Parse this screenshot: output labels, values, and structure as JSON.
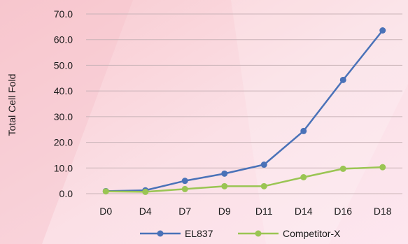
{
  "chart_data": {
    "type": "line",
    "categories": [
      "D0",
      "D4",
      "D7",
      "D9",
      "D11",
      "D14",
      "D16",
      "D18"
    ],
    "ylabel": "Total Cell Fold",
    "xlabel": "",
    "ylim": [
      0,
      70
    ],
    "yticks": [
      "0.0",
      "10.0",
      "20.0",
      "30.0",
      "40.0",
      "50.0",
      "60.0",
      "70.0"
    ],
    "grid": true,
    "legend_position": "bottom",
    "series": [
      {
        "name": "EL837",
        "color": "#4a72b8",
        "values": [
          1.0,
          1.3,
          5.0,
          7.8,
          11.3,
          24.4,
          44.3,
          63.6
        ]
      },
      {
        "name": "Competitor-X",
        "color": "#9ac553",
        "values": [
          0.9,
          0.7,
          1.8,
          2.9,
          2.9,
          6.4,
          9.7,
          10.3
        ]
      }
    ]
  }
}
